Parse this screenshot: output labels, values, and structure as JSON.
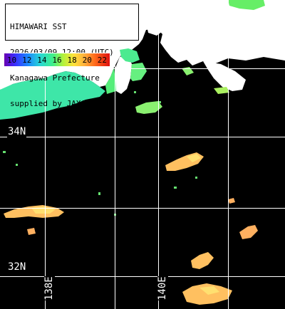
{
  "header": {
    "lines": [
      "HIMAWARI SST",
      "2026/03/09 12:00 (UTC)",
      "Kanagawa Prefecture",
      "supplied by JAXA"
    ]
  },
  "legend": {
    "values": [
      "10",
      "12",
      "14",
      "16",
      "18",
      "20",
      "22"
    ]
  },
  "grid": {
    "lat_labels": [
      "34N",
      "32N"
    ],
    "lon_labels": [
      "138E",
      "140E"
    ]
  },
  "colors": {
    "land": "#ffffff",
    "no_data": "#000000",
    "cool_water": "#3ee6a8",
    "warm_water": "#ffc060",
    "grid_line": "#ffffff"
  }
}
